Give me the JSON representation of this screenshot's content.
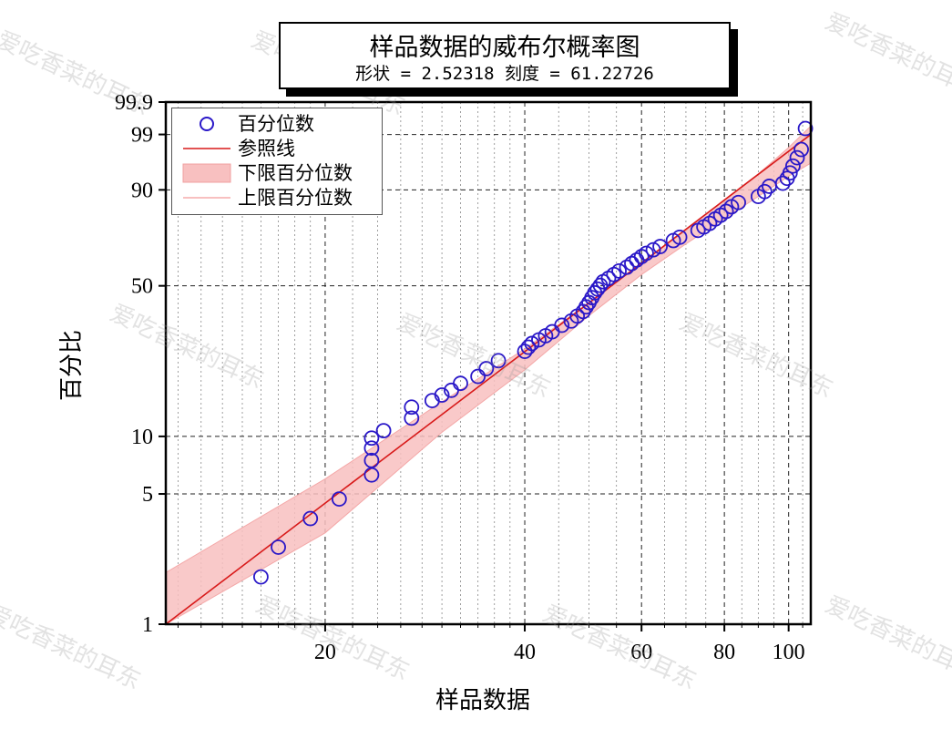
{
  "title": "样品数据的威布尔概率图",
  "subtitle": "形状 = 2.52318  刻度 = 61.22726",
  "xlabel": "样品数据",
  "ylabel": "百分比",
  "watermark": "爱吃香菜的耳东",
  "legend": [
    {
      "label": "百分位数",
      "kind": "marker"
    },
    {
      "label": "参照线",
      "kind": "line"
    },
    {
      "label": "下限百分位数",
      "kind": "band"
    },
    {
      "label": "上限百分位数",
      "kind": "band-line"
    }
  ],
  "colors": {
    "marker": "#2a18c8",
    "line": "#d81a1a",
    "band": "#f8c0c0"
  },
  "chart_data": {
    "type": "scatter",
    "scale": "weibull-probability",
    "shape": 2.52318,
    "scale_param": 61.22726,
    "xlim": [
      11.5,
      108
    ],
    "ylim": [
      1,
      99.9
    ],
    "x_ticks": [
      20,
      40,
      60,
      80,
      100
    ],
    "y_ticks": [
      1,
      5,
      10,
      50,
      90,
      99,
      99.9
    ],
    "grid": true,
    "legend_position": "top-left",
    "points": [
      [
        16.0,
        1.8
      ],
      [
        17.0,
        2.6
      ],
      [
        19.0,
        3.7
      ],
      [
        21.0,
        4.7
      ],
      [
        23.5,
        6.3
      ],
      [
        23.5,
        7.5
      ],
      [
        23.5,
        8.7
      ],
      [
        23.5,
        9.8
      ],
      [
        24.5,
        10.7
      ],
      [
        27.0,
        12.4
      ],
      [
        27.0,
        14.1
      ],
      [
        29.0,
        15.2
      ],
      [
        30.0,
        16.2
      ],
      [
        31.0,
        17.1
      ],
      [
        32.0,
        18.5
      ],
      [
        34.0,
        20.0
      ],
      [
        35.0,
        21.8
      ],
      [
        36.5,
        23.8
      ],
      [
        40.0,
        26.3
      ],
      [
        40.5,
        27.5
      ],
      [
        41.0,
        28.6
      ],
      [
        42.0,
        29.7
      ],
      [
        43.0,
        31.0
      ],
      [
        44.0,
        32.3
      ],
      [
        45.5,
        34.5
      ],
      [
        47.0,
        36.0
      ],
      [
        48.0,
        37.8
      ],
      [
        49.0,
        39.5
      ],
      [
        49.5,
        41.3
      ],
      [
        50.0,
        43.0
      ],
      [
        50.5,
        45.0
      ],
      [
        51.0,
        47.0
      ],
      [
        51.5,
        48.6
      ],
      [
        52.0,
        50.2
      ],
      [
        52.5,
        51.8
      ],
      [
        53.5,
        53.3
      ],
      [
        54.5,
        55.0
      ],
      [
        55.5,
        56.6
      ],
      [
        57.0,
        58.3
      ],
      [
        58.0,
        60.0
      ],
      [
        59.0,
        61.6
      ],
      [
        60.0,
        63.2
      ],
      [
        61.0,
        64.7
      ],
      [
        62.5,
        66.3
      ],
      [
        64.0,
        67.8
      ],
      [
        67.0,
        70.5
      ],
      [
        68.5,
        72.0
      ],
      [
        73.0,
        75.0
      ],
      [
        74.5,
        76.5
      ],
      [
        76.0,
        78.0
      ],
      [
        77.5,
        79.8
      ],
      [
        79.0,
        81.3
      ],
      [
        80.5,
        82.8
      ],
      [
        82.0,
        84.5
      ],
      [
        84.0,
        86.0
      ],
      [
        90.0,
        88.0
      ],
      [
        92.0,
        89.5
      ],
      [
        93.5,
        91.0
      ],
      [
        98.0,
        91.8
      ],
      [
        99.5,
        93.0
      ],
      [
        100.5,
        94.2
      ],
      [
        101.5,
        95.5
      ],
      [
        103.0,
        96.8
      ],
      [
        104.5,
        97.8
      ],
      [
        106.0,
        99.3
      ]
    ],
    "reference_line": [
      [
        11.5,
        1.0
      ],
      [
        108.0,
        99.0
      ]
    ],
    "confidence_band": {
      "x": [
        11.5,
        20,
        30,
        40,
        50,
        60,
        70,
        80,
        90,
        100,
        108
      ],
      "lower": [
        0.55,
        3.1,
        10.5,
        21.5,
        38.0,
        55.0,
        69.0,
        80.0,
        88.0,
        93.5,
        96.0
      ],
      "upper": [
        1.9,
        6.0,
        15.0,
        27.0,
        43.0,
        60.0,
        75.0,
        87.0,
        94.0,
        98.0,
        99.4
      ]
    }
  }
}
